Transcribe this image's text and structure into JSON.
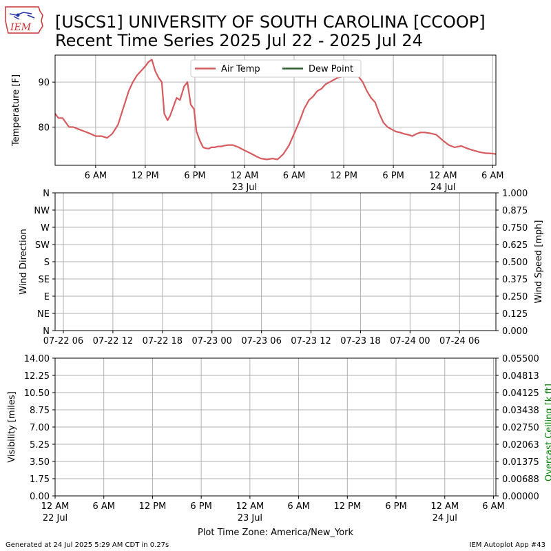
{
  "title": {
    "line1": "[USCS1] UNIVERSITY OF SOUTH CAROLINA [CCOOP]",
    "line2": "Recent Time Series 2025 Jul 22 - 2025 Jul 24"
  },
  "logo": {
    "text": "IEM"
  },
  "footer": {
    "generated": "Generated at 24 Jul 2025 5:29 AM CDT in 0.27s",
    "app": "IEM Autoplot App #43"
  },
  "colors": {
    "air_temp": "#d65a5e",
    "dew_point": "#2e5e2e",
    "grid": "#b0b0b0",
    "ceiling_axis": "#008000"
  },
  "chart_data": [
    {
      "type": "line",
      "name": "temperature-panel",
      "ylabel": "Temperature [F]",
      "x_unit": "hours since 2025-07-22 00:00 America/New_York",
      "ylim": [
        71.5,
        96
      ],
      "yticks": [
        80,
        90
      ],
      "xticks": [
        {
          "x": 6,
          "label": "6 AM",
          "sub": ""
        },
        {
          "x": 12,
          "label": "12 PM",
          "sub": ""
        },
        {
          "x": 18,
          "label": "6 PM",
          "sub": ""
        },
        {
          "x": 24,
          "label": "12 AM",
          "sub": "23 Jul"
        },
        {
          "x": 30,
          "label": "6 AM",
          "sub": ""
        },
        {
          "x": 36,
          "label": "12 PM",
          "sub": ""
        },
        {
          "x": 42,
          "label": "6 PM",
          "sub": ""
        },
        {
          "x": 48,
          "label": "12 AM",
          "sub": "24 Jul"
        },
        {
          "x": 54,
          "label": "6 AM",
          "sub": ""
        }
      ],
      "xlim": [
        1.1,
        54.4
      ],
      "legend": {
        "position": "top-center",
        "entries": [
          "Air Temp",
          "Dew Point"
        ]
      },
      "grid": true,
      "series": [
        {
          "name": "Air Temp",
          "x": [
            1.1,
            1.5,
            2.0,
            2.4,
            2.8,
            3.3,
            4.0,
            4.7,
            5.4,
            6.0,
            6.7,
            7.4,
            8.0,
            8.7,
            9.3,
            10.0,
            10.5,
            11.0,
            11.5,
            12.0,
            12.4,
            12.8,
            13.2,
            13.6,
            14.0,
            14.3,
            14.7,
            15.0,
            15.4,
            15.8,
            16.2,
            16.7,
            17.1,
            17.5,
            17.9,
            18.2,
            18.6,
            19.0,
            19.3,
            19.7,
            20.0,
            20.4,
            20.8,
            21.2,
            21.6,
            22.0,
            22.6,
            23.3,
            24.0,
            24.7,
            25.4,
            26.0,
            26.7,
            27.4,
            28.0,
            28.7,
            29.4,
            30.0,
            30.7,
            31.2,
            31.8,
            32.3,
            32.8,
            33.3,
            33.8,
            34.3,
            34.8,
            35.3,
            35.8,
            36.3,
            36.8,
            37.3,
            37.8,
            38.3,
            38.8,
            39.3,
            39.8,
            40.3,
            40.8,
            41.3,
            41.8,
            42.3,
            42.8,
            43.3,
            43.8,
            44.3,
            44.8,
            45.3,
            45.8,
            46.5,
            47.2,
            48.0,
            48.7,
            49.4,
            50.2,
            51.0,
            51.7,
            52.5,
            53.2,
            54.0,
            54.4
          ],
          "y": [
            83,
            82,
            82,
            81,
            80,
            80,
            79.5,
            79,
            78.5,
            78,
            78,
            77.6,
            78.5,
            80.5,
            84,
            88,
            90,
            91.5,
            92.5,
            93.5,
            94.5,
            95,
            92.5,
            91,
            90,
            83,
            81.5,
            82.5,
            84.5,
            86.5,
            86,
            89,
            90,
            85,
            84,
            79,
            77,
            75.5,
            75.3,
            75.2,
            75.5,
            75.5,
            75.7,
            75.7,
            75.9,
            76,
            76,
            75.5,
            74.8,
            74.2,
            73.5,
            73,
            72.8,
            73,
            72.8,
            74,
            76,
            78.5,
            81.5,
            84,
            86,
            86.8,
            88,
            88.5,
            89.5,
            90,
            90.5,
            91,
            91.2,
            91.3,
            91.5,
            91.5,
            91.2,
            90,
            88,
            86.5,
            85.5,
            83,
            81,
            80,
            79.5,
            79,
            78.8,
            78.5,
            78.3,
            78,
            78.5,
            78.8,
            78.8,
            78.6,
            78.3,
            77,
            76,
            75.5,
            75.8,
            75.2,
            74.8,
            74.4,
            74.2,
            74.1,
            74.0
          ]
        },
        {
          "name": "Dew Point",
          "x": [],
          "y": []
        }
      ]
    },
    {
      "type": "line",
      "name": "wind-panel",
      "ylabel_left": "Wind Direction",
      "ylabel_right": "Wind Speed [mph]",
      "x_unit": "hours since 2025-07-22 00:00 America/New_York",
      "xlim": [
        5.0,
        58.4
      ],
      "yticks_left": [
        "N",
        "NE",
        "E",
        "SE",
        "S",
        "SW",
        "W",
        "NW",
        "N"
      ],
      "yticks_right": [
        "0.000",
        "0.125",
        "0.250",
        "0.375",
        "0.500",
        "0.625",
        "0.750",
        "0.875",
        "1.000"
      ],
      "xticks": [
        {
          "x": 6,
          "label": "07-22 06"
        },
        {
          "x": 12,
          "label": "07-22 12"
        },
        {
          "x": 18,
          "label": "07-22 18"
        },
        {
          "x": 24,
          "label": "07-23 00"
        },
        {
          "x": 30,
          "label": "07-23 06"
        },
        {
          "x": 36,
          "label": "07-23 12"
        },
        {
          "x": 42,
          "label": "07-23 18"
        },
        {
          "x": 48,
          "label": "07-24 00"
        },
        {
          "x": 54,
          "label": "07-24 06"
        }
      ],
      "grid": true,
      "series": []
    },
    {
      "type": "line",
      "name": "visibility-panel",
      "ylabel_left": "Visibility [miles]",
      "ylabel_right": "Overcast Ceiling [k ft]",
      "xlabel": "Plot Time Zone: America/New_York",
      "x_unit": "hours since 2025-07-22 00:00 America/New_York",
      "xlim": [
        0,
        54.3
      ],
      "yticks_left": [
        "0.00",
        "1.75",
        "3.50",
        "5.25",
        "7.00",
        "8.75",
        "10.50",
        "12.25",
        "14.00"
      ],
      "yticks_right": [
        "0.00000",
        "0.00688",
        "0.01375",
        "0.02063",
        "0.02750",
        "0.03438",
        "0.04125",
        "0.04813",
        "0.05500"
      ],
      "xticks": [
        {
          "x": 0,
          "label": "12 AM",
          "sub": "22 Jul"
        },
        {
          "x": 6,
          "label": "6 AM",
          "sub": ""
        },
        {
          "x": 12,
          "label": "12 PM",
          "sub": ""
        },
        {
          "x": 18,
          "label": "6 PM",
          "sub": ""
        },
        {
          "x": 24,
          "label": "12 AM",
          "sub": "23 Jul"
        },
        {
          "x": 30,
          "label": "6 AM",
          "sub": ""
        },
        {
          "x": 36,
          "label": "12 PM",
          "sub": ""
        },
        {
          "x": 42,
          "label": "6 PM",
          "sub": ""
        },
        {
          "x": 48,
          "label": "12 AM",
          "sub": "24 Jul"
        },
        {
          "x": 54,
          "label": "6 AM",
          "sub": ""
        }
      ],
      "grid": true,
      "series": []
    }
  ]
}
